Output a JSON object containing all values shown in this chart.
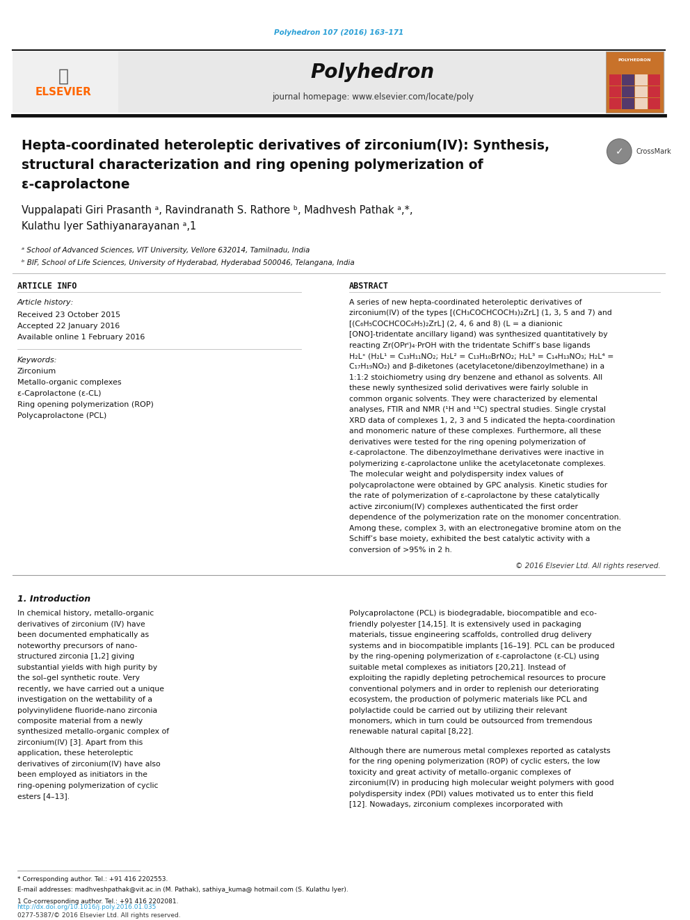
{
  "page_width": 9.92,
  "page_height": 13.23,
  "bg_color": "#ffffff",
  "journal_ref": "Polyhedron 107 (2016) 163–171",
  "journal_ref_color": "#2a9fd6",
  "header_bg": "#e8e8e8",
  "journal_name": "Polyhedron",
  "journal_homepage": "journal homepage: www.elsevier.com/locate/poly",
  "header_bar_color": "#1a1a1a",
  "article_title_line1": "Hepta-coordinated heteroleptic derivatives of zirconium(IV): Synthesis,",
  "article_title_line2": "structural characterization and ring opening polymerization of",
  "article_title_line3": "ε-caprolactone",
  "authors": "Vuppalapati Giri Prasanth ᵃ, Ravindranath S. Rathore ᵇ, Madhvesh Pathak ᵃ,*,",
  "authors2": "Kulathu Iyer Sathiyanarayanan ᵃ,1",
  "affil_a": "ᵃ School of Advanced Sciences, VIT University, Vellore 632014, Tamilnadu, India",
  "affil_b": "ᵇ BIF, School of Life Sciences, University of Hyderabad, Hyderabad 500046, Telangana, India",
  "section_article_info": "ARTICLE INFO",
  "section_abstract": "ABSTRACT",
  "article_history_label": "Article history:",
  "received": "Received 23 October 2015",
  "accepted": "Accepted 22 January 2016",
  "available": "Available online 1 February 2016",
  "keywords_label": "Keywords:",
  "kw1": "Zirconium",
  "kw2": "Metallo-organic complexes",
  "kw3": "ε-Caprolactone (ε-CL)",
  "kw4": "Ring opening polymerization (ROP)",
  "kw5": "Polycaprolactone (PCL)",
  "abstract_text": "A series of new hepta-coordinated heteroleptic derivatives of zirconium(IV) of the types [(CH₃COCHCOCH₃)₂ZrL] (1, 3, 5 and 7) and [(C₆H₅COCHCOC₆H₅)₂ZrL] (2, 4, 6 and 8) (L = a dianionic [ONO]-tridentate ancillary ligand) was synthesized quantitatively by reacting Zr(OPrⁱ)₄·PrOH with the tridentate Schiff’s base ligands H₂Lˣ (H₂L¹ = C₁₃H₁₁NO₂; H₂L² = C₁₃H₁₀BrNO₂; H₂L³ = C₁₄H₁₃NO₃; H₂L⁴ = C₁₇H₁₉NO₂) and β-diketones (acetylacetone/dibenzoylmethane) in a 1:1:2 stoichiometry using dry benzene and ethanol as solvents. All these newly synthesized solid derivatives were fairly soluble in common organic solvents. They were characterized by elemental analyses, FTIR and NMR (¹H and ¹³C) spectral studies. Single crystal XRD data of complexes 1, 2, 3 and 5 indicated the hepta-coordination and monomeric nature of these complexes. Furthermore, all these derivatives were tested for the ring opening polymerization of ε-caprolactone. The dibenzoylmethane derivatives were inactive in polymerizing ε-caprolactone unlike the acetylacetonate complexes. The molecular weight and polydispersity index values of polycaprolactone were obtained by GPC analysis. Kinetic studies for the rate of polymerization of ε-caprolactone by these catalytically active zirconium(IV) complexes authenticated the first order dependence of the polymerization rate on the monomer concentration. Among these, complex 3, with an electronegative bromine atom on the Schiff’s base moiety, exhibited the best catalytic activity with a conversion of >95% in 2 h.",
  "copyright": "© 2016 Elsevier Ltd. All rights reserved.",
  "section1_title": "1. Introduction",
  "intro_col1_p1": "In chemical history, metallo-organic derivatives of zirconium (IV) have been documented emphatically as noteworthy precursors of nano-structured zirconia [1,2] giving substantial yields with high purity by the sol–gel synthetic route. Very recently, we have carried out a unique investigation on the wettability of a polyvinylidene fluoride-nano zirconia composite material from a newly synthesized metallo-organic complex of zirconium(IV) [3]. Apart from this application, these heteroleptic derivatives of zirconium(IV) have also been employed as initiators in the ring-opening polymerization of cyclic esters [4–13].",
  "footnote_star": "* Corresponding author. Tel.: +91 416 2202553.",
  "footnote_email": "E-mail addresses: madhveshpathak@vit.ac.in (M. Pathak), sathiya_kuma@ hotmail.com (S. Kulathu Iyer).",
  "footnote_1": "1 Co-corresponding author. Tel.: +91 416 2202081.",
  "doi": "http://dx.doi.org/10.1016/j.poly.2016.01.035",
  "issn": "0277-5387/© 2016 Elsevier Ltd. All rights reserved.",
  "intro_col2_p1": "Polycaprolactone (PCL) is biodegradable, biocompatible and eco-friendly polyester [14,15]. It is extensively used in packaging materials, tissue engineering scaffolds, controlled drug delivery systems and in biocompatible implants [16–19]. PCL can be produced by the ring-opening polymerization of ε-caprolactone (ε-CL) using suitable metal complexes as initiators [20,21]. Instead of exploiting the rapidly depleting petrochemical resources to procure conventional polymers and in order to replenish our deteriorating ecosystem, the production of polymeric materials like PCL and polylactide could be carried out by utilizing their relevant monomers, which in turn could be outsourced from tremendous renewable natural capital [8,22].",
  "intro_col2_p2": "Although there are numerous metal complexes reported as catalysts for the ring opening polymerization (ROP) of cyclic esters, the low toxicity and great activity of metallo-organic complexes of zirconium(IV) in producing high molecular weight polymers with good polydispersity index (PDI) values motivated us to enter this field [12]. Nowadays, zirconium complexes incorporated with",
  "elsevier_color": "#ff6600",
  "sciencedirect_color": "#2a9fd6"
}
